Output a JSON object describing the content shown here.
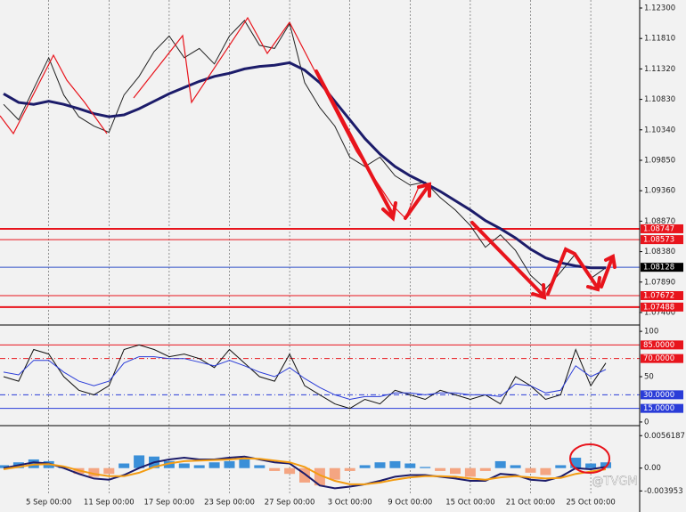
{
  "chart_data": [
    {
      "type": "line",
      "ylim": [
        1.07199,
        1.12429
      ],
      "yticks": [
        {
          "value": 1.123,
          "label": "1.12300"
        },
        {
          "value": 1.1181,
          "label": "1.11810"
        },
        {
          "value": 1.1132,
          "label": "1.11320"
        },
        {
          "value": 1.1083,
          "label": "1.10830"
        },
        {
          "value": 1.1034,
          "label": "1.10340"
        },
        {
          "value": 1.0985,
          "label": "1.09850"
        },
        {
          "value": 1.0936,
          "label": "1.09360"
        },
        {
          "value": 1.0887,
          "label": "1.08870"
        },
        {
          "value": 1.0838,
          "label": "1.08380"
        },
        {
          "value": 1.0789,
          "label": "1.07890"
        },
        {
          "value": 1.074,
          "label": "1.07400"
        }
      ],
      "levels": [
        {
          "value": 1.08747,
          "label": "1.08747",
          "color": "#e8141c",
          "label_color": "#e8141c",
          "width": 2
        },
        {
          "value": 1.08573,
          "label": "1.08573",
          "color": "#e8141c",
          "label_color": "#e8141c",
          "width": 1
        },
        {
          "value": 1.08128,
          "label": "1.08128",
          "color": "#3050c8",
          "label_color": "#000000",
          "width": 1
        },
        {
          "value": 1.07672,
          "label": "1.07672",
          "color": "#e8141c",
          "label_color": "#e8141c",
          "width": 1
        },
        {
          "value": 1.07488,
          "label": "1.07488",
          "color": "#e8141c",
          "label_color": "#e8141c",
          "width": 2
        }
      ],
      "series": [
        {
          "color": "#222222",
          "values": [
            1.1075,
            1.105,
            1.11,
            1.115,
            1.109,
            1.1055,
            1.104,
            1.103,
            1.109,
            1.112,
            1.116,
            1.1185,
            1.115,
            1.1165,
            1.114,
            1.1185,
            1.121,
            1.117,
            1.1165,
            1.1205,
            1.111,
            1.107,
            1.104,
            1.099,
            1.0975,
            1.099,
            1.096,
            1.0945,
            1.095,
            1.0925,
            1.0905,
            1.088,
            1.0845,
            1.0865,
            1.084,
            1.08,
            1.0778,
            1.0805,
            1.0835,
            1.0795,
            1.0812
          ]
        },
        {
          "color": "#1c1c6a",
          "values": [
            1.1092,
            1.1078,
            1.1075,
            1.108,
            1.1075,
            1.1068,
            1.106,
            1.1055,
            1.1058,
            1.1068,
            1.108,
            1.1092,
            1.1102,
            1.1112,
            1.112,
            1.1125,
            1.1132,
            1.1136,
            1.1138,
            1.1142,
            1.113,
            1.111,
            1.108,
            1.105,
            1.102,
            1.0995,
            1.0975,
            1.096,
            1.0948,
            1.0935,
            1.092,
            1.0905,
            1.0888,
            1.0875,
            1.086,
            1.0842,
            1.0828,
            1.082,
            1.0815,
            1.0812,
            1.0812
          ]
        }
      ]
    },
    {
      "type": "line",
      "ylim": [
        -4,
        106
      ],
      "yticks": [
        100,
        50,
        0
      ],
      "levels": [
        {
          "value": 85,
          "label": "85.0000",
          "color": "#e8141c",
          "style": "solid"
        },
        {
          "value": 70,
          "label": "70.0000",
          "color": "#e8141c",
          "style": "dashdot"
        },
        {
          "value": 30,
          "label": "30.0000",
          "color": "#2a3cd8",
          "style": "dashdot"
        },
        {
          "value": 15,
          "label": "15.0000",
          "color": "#2a3cd8",
          "style": "solid"
        }
      ],
      "series": [
        {
          "color": "#111111",
          "values": [
            50,
            45,
            80,
            75,
            50,
            35,
            30,
            40,
            80,
            85,
            80,
            72,
            75,
            70,
            60,
            80,
            65,
            50,
            45,
            75,
            40,
            30,
            20,
            15,
            25,
            20,
            35,
            30,
            25,
            35,
            30,
            25,
            30,
            20,
            50,
            40,
            25,
            30,
            80,
            40,
            65
          ]
        },
        {
          "color": "#2a3cd8",
          "values": [
            55,
            52,
            68,
            68,
            55,
            45,
            40,
            45,
            65,
            72,
            72,
            70,
            70,
            66,
            62,
            68,
            62,
            55,
            50,
            60,
            48,
            38,
            30,
            25,
            28,
            28,
            32,
            32,
            30,
            32,
            32,
            30,
            30,
            28,
            42,
            40,
            32,
            35,
            62,
            50,
            58
          ]
        }
      ]
    },
    {
      "type": "bar",
      "ylim": [
        -0.0076,
        0.0072
      ],
      "yticks": [
        0.0056187,
        {
          "value": 0,
          "label": "0.00"
        },
        -0.003953
      ],
      "categories": [
        null,
        null,
        null,
        "5 Sep 00:00",
        null,
        null,
        null,
        "11 Sep 00:00",
        null,
        null,
        null,
        "17 Sep 00:00",
        null,
        null,
        null,
        "23 Sep 00:00",
        null,
        null,
        null,
        "27 Sep 00:00",
        null,
        null,
        null,
        "3 Oct 00:00",
        null,
        null,
        null,
        "9 Oct 00:00",
        null,
        null,
        null,
        "15 Oct 00:00",
        null,
        null,
        null,
        "21 Oct 00:00",
        null,
        null,
        null,
        "25 Oct 00:00",
        null
      ],
      "values": [
        0.0005,
        0.001,
        0.0015,
        0.0012,
        0.0002,
        -0.001,
        -0.0015,
        -0.001,
        0.0008,
        0.0022,
        0.002,
        0.0012,
        0.0008,
        0.0005,
        0.001,
        0.0012,
        0.0015,
        0.0005,
        -0.0005,
        -0.001,
        -0.0025,
        -0.003,
        -0.002,
        -0.0005,
        0.0005,
        0.001,
        0.0012,
        0.0008,
        0.0002,
        -0.0005,
        -0.001,
        -0.0015,
        -0.0005,
        0.0012,
        0.0005,
        -0.0008,
        -0.0012,
        0.0005,
        0.0018,
        0.0008,
        0.001
      ],
      "color_up": "#3a8fd8",
      "color_down": "#f4a582",
      "series": [
        {
          "color": "#1c1c6a",
          "values": [
            0.0,
            0.0005,
            0.001,
            0.0008,
            0.0,
            -0.001,
            -0.0018,
            -0.002,
            -0.0012,
            0.0,
            0.001,
            0.0015,
            0.0018,
            0.0015,
            0.0015,
            0.0018,
            0.002,
            0.0015,
            0.001,
            0.0008,
            -0.001,
            -0.003,
            -0.0035,
            -0.0032,
            -0.0028,
            -0.0022,
            -0.0015,
            -0.0012,
            -0.0012,
            -0.0015,
            -0.0018,
            -0.0022,
            -0.0022,
            -0.001,
            -0.0012,
            -0.002,
            -0.0022,
            -0.0015,
            0.0,
            -0.0002,
            0.0002
          ]
        },
        {
          "color": "#f39c12",
          "values": [
            -0.0002,
            0.0002,
            0.0006,
            0.0007,
            0.0003,
            -0.0004,
            -0.001,
            -0.0014,
            -0.0014,
            -0.0008,
            0.0002,
            0.0008,
            0.0012,
            0.0013,
            0.0014,
            0.0015,
            0.0017,
            0.0016,
            0.0013,
            0.001,
            0.0002,
            -0.0012,
            -0.0022,
            -0.0028,
            -0.0028,
            -0.0025,
            -0.002,
            -0.0016,
            -0.0014,
            -0.0014,
            -0.0015,
            -0.0018,
            -0.002,
            -0.0016,
            -0.0014,
            -0.0016,
            -0.0018,
            -0.0017,
            -0.001,
            -0.0006,
            -0.0002
          ]
        }
      ]
    }
  ],
  "watermark": "@TVGM"
}
